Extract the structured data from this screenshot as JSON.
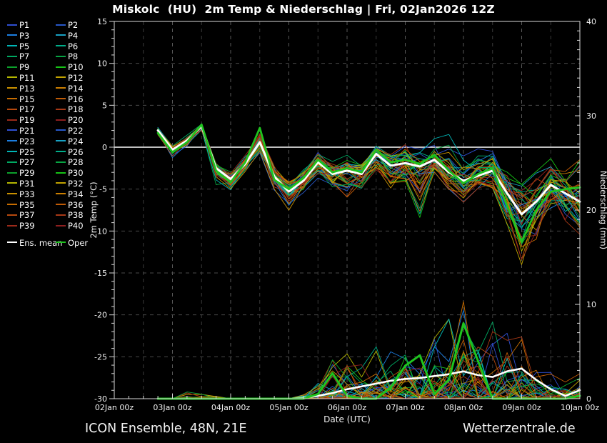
{
  "title": "Miskolc  (HU)  2m Temp & Niederschlag | Fri, 02Jan2026 12Z",
  "footer": {
    "left": "ICON Ensemble, 48N, 21E",
    "right": "Wetterzentrale.de"
  },
  "legend": {
    "member_labels": [
      "P1",
      "P2",
      "P3",
      "P4",
      "P5",
      "P6",
      "P7",
      "P8",
      "P9",
      "P10",
      "P11",
      "P12",
      "P13",
      "P14",
      "P15",
      "P16",
      "P17",
      "P18",
      "P19",
      "P20",
      "P21",
      "P22",
      "P23",
      "P24",
      "P25",
      "P26",
      "P27",
      "P28",
      "P29",
      "P30",
      "P31",
      "P32",
      "P33",
      "P34",
      "P35",
      "P36",
      "P37",
      "P38",
      "P39",
      "P40"
    ],
    "mean_label": "Ens. mean",
    "oper_label": "Oper",
    "palette": [
      "#2f4fd0",
      "#2758c8",
      "#1c7ee0",
      "#18a2c4",
      "#00b6b6",
      "#00ae8a",
      "#00aa62",
      "#07a543",
      "#0ca12b",
      "#16c316",
      "#b4b600",
      "#c2a300",
      "#ca9100",
      "#cc7f00",
      "#c86d00",
      "#c15c06",
      "#b84a0e",
      "#a93916",
      "#9c2a1a",
      "#8e1f1f"
    ],
    "mean_color": "#ffffff",
    "oper_color": "#1fc41f"
  },
  "chart_data": {
    "type": "line",
    "title": "Miskolc  (HU)  2m Temp & Niederschlag | Fri, 02Jan2026 12Z",
    "xlabel": "Date (UTC)",
    "ylabel_left": "2m Temp (°C)",
    "ylabel_right": "Niederschlag (mm)",
    "ylim_left": [
      -30,
      15
    ],
    "ylim_right": [
      0,
      40
    ],
    "grid": "dashed 12h vertical, 5C horizontal, solid white 0C line",
    "legend_position": "outside-left",
    "x_tick_labels": [
      "02Jan 00z",
      "03Jan 00z",
      "04Jan 00z",
      "05Jan 00z",
      "06Jan 00z",
      "07Jan 00z",
      "08Jan 00z",
      "09Jan 00z",
      "10Jan 00z"
    ],
    "y_left_ticks": [
      15,
      10,
      5,
      0,
      -5,
      -10,
      -15,
      -20,
      -25,
      -30
    ],
    "y_right_ticks": [
      40,
      30,
      20,
      10,
      0
    ],
    "x_hours_since_02jan00z": [
      18,
      24,
      30,
      36,
      42,
      48,
      54,
      60,
      66,
      72,
      78,
      84,
      90,
      96,
      102,
      108,
      114,
      120,
      126,
      132,
      138,
      144,
      150,
      156,
      162,
      168,
      174,
      180,
      186,
      192
    ],
    "series": [
      {
        "name": "Ens. mean",
        "axis": "precip",
        "color": "#ffffff",
        "width": 2.6,
        "values": [
          0,
          0,
          0,
          0,
          0,
          0,
          0,
          0,
          0,
          0,
          0.1,
          0.3,
          0.6,
          1.0,
          1.3,
          1.6,
          1.9,
          2.1,
          2.2,
          2.4,
          2.6,
          2.9,
          2.5,
          2.3,
          2.9,
          3.2,
          2.0,
          1.0,
          0.3,
          0.9
        ]
      },
      {
        "name": "Oper",
        "axis": "precip",
        "color": "#1fc41f",
        "width": 3,
        "values": [
          0,
          0,
          0,
          0,
          0,
          0,
          0,
          0,
          0,
          0,
          0,
          0.5,
          2.7,
          0.3,
          0,
          0,
          1.2,
          3.5,
          4.6,
          0.5,
          2.0,
          8.0,
          4.0,
          0,
          0,
          0,
          0,
          0,
          0,
          0.3
        ]
      },
      {
        "name": "Ens. mean",
        "axis": "temp",
        "color": "#ffffff",
        "width": 3,
        "values": [
          2.0,
          -0.3,
          0.8,
          2.5,
          -2.5,
          -3.8,
          -2.0,
          0.6,
          -3.5,
          -5.3,
          -4.0,
          -1.8,
          -3.2,
          -2.8,
          -3.2,
          -0.8,
          -2.2,
          -1.9,
          -2.3,
          -1.5,
          -3.0,
          -4.0,
          -3.4,
          -2.8,
          -5.5,
          -8.0,
          -6.5,
          -4.5,
          -5.5,
          -6.5
        ]
      },
      {
        "name": "Oper",
        "axis": "temp",
        "color": "#1fc41f",
        "width": 2.8,
        "values": [
          1.7,
          -0.6,
          0.6,
          2.7,
          -2.8,
          -4.2,
          -1.8,
          2.3,
          -3.9,
          -5.0,
          -3.7,
          -1.5,
          -3.0,
          -2.5,
          -3.0,
          -0.3,
          -1.8,
          -1.5,
          -2.0,
          -0.9,
          -2.8,
          -4.3,
          -3.2,
          -2.5,
          -7.0,
          -11.3,
          -7.5,
          -5.3,
          -5.0,
          -4.8
        ]
      }
    ],
    "ensemble_envelope": {
      "members": 40,
      "temp_low": [
        1.2,
        -1.8,
        -0.2,
        1.4,
        -5.7,
        -6.0,
        -3.6,
        -1.5,
        -5.8,
        -8.7,
        -6.2,
        -4.5,
        -6.0,
        -9.0,
        -6.2,
        -4.2,
        -6.0,
        -5.2,
        -10.8,
        -4.5,
        -6.5,
        -7.5,
        -5.5,
        -6.5,
        -11.0,
        -16.5,
        -14.0,
        -9.5,
        -11.5,
        -12.5
      ],
      "temp_high": [
        2.6,
        0.6,
        1.7,
        3.1,
        -1.4,
        -2.4,
        -0.4,
        2.5,
        -1.8,
        -3.4,
        -1.8,
        0.2,
        -1.0,
        -0.5,
        -1.0,
        0.6,
        0.2,
        1.9,
        0.8,
        2.2,
        2.6,
        1.2,
        1.6,
        0.6,
        -0.8,
        -2.4,
        -1.8,
        -0.9,
        -1.8,
        1.0
      ],
      "precip_max": [
        0,
        0,
        0.9,
        0.6,
        0.3,
        0,
        0,
        0,
        0,
        0,
        1.0,
        3.0,
        6.5,
        7.0,
        4.0,
        5.0,
        6.0,
        8.0,
        6.0,
        10.5,
        12.0,
        16.0,
        13.0,
        14.0,
        10.0,
        8.0,
        5.0,
        3.0,
        2.0,
        3.0
      ]
    }
  }
}
